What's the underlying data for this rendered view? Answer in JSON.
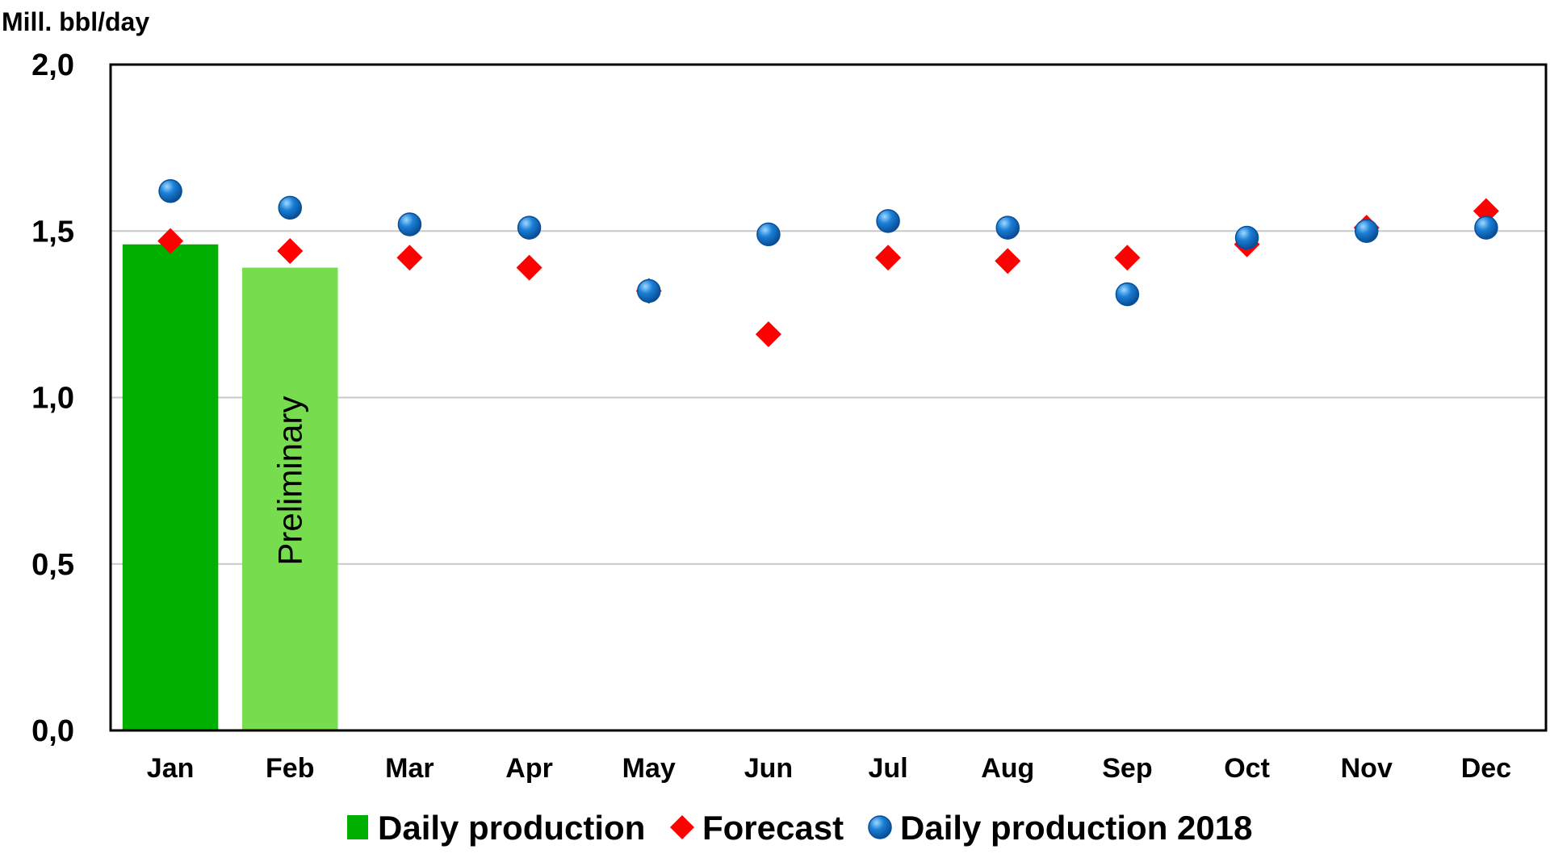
{
  "chart_data": {
    "type": "bar",
    "y_unit_label": "Mill. bbl/day",
    "categories": [
      "Jan",
      "Feb",
      "Mar",
      "Apr",
      "May",
      "Jun",
      "Jul",
      "Aug",
      "Sep",
      "Oct",
      "Nov",
      "Dec"
    ],
    "ylim": [
      0,
      2.0
    ],
    "yticks": [
      0,
      0.5,
      1.0,
      1.5,
      2.0
    ],
    "ytick_labels": [
      "0,0",
      "0,5",
      "1,0",
      "1,5",
      "2,0"
    ],
    "grid": true,
    "legend_position": "bottom",
    "series": [
      {
        "name": "Daily production",
        "kind": "bar",
        "color": "#00b000",
        "values": [
          1.46,
          1.39,
          null,
          null,
          null,
          null,
          null,
          null,
          null,
          null,
          null,
          null
        ],
        "bar_colors": [
          "#00b000",
          "#77dd4f"
        ]
      },
      {
        "name": "Forecast",
        "kind": "diamond",
        "color": "#ff0000",
        "values": [
          1.47,
          1.44,
          1.42,
          1.39,
          1.32,
          1.19,
          1.42,
          1.41,
          1.42,
          1.46,
          1.51,
          1.56
        ]
      },
      {
        "name": "Daily production 2018",
        "kind": "circle",
        "color": "#1a7fd6",
        "values": [
          1.62,
          1.57,
          1.52,
          1.51,
          1.32,
          1.49,
          1.53,
          1.51,
          1.31,
          1.48,
          1.5,
          1.51
        ]
      }
    ],
    "annotations": [
      {
        "text": "Preliminary",
        "category": "Feb"
      }
    ]
  }
}
